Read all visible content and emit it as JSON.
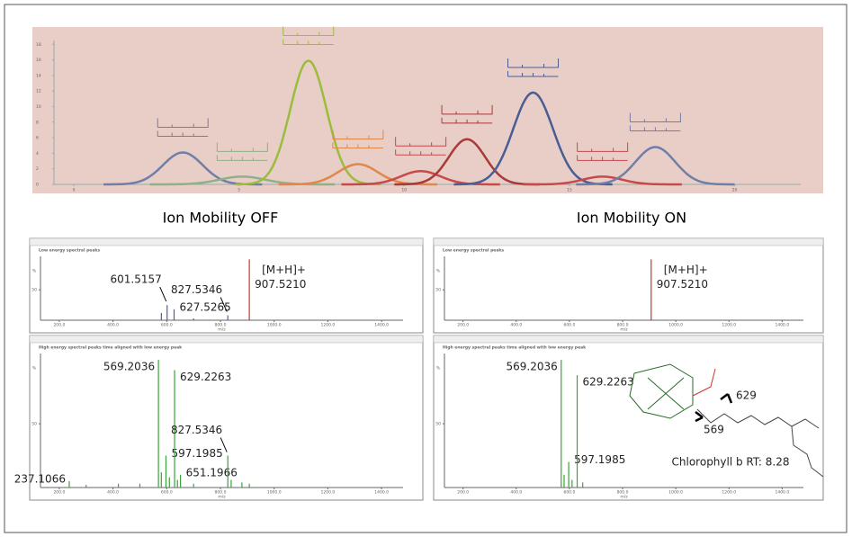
{
  "headings": {
    "left": "Ion Mobility OFF",
    "right": "Ion Mobility ON"
  },
  "structure": {
    "caption": "Chlorophyll b RT: 8.28",
    "fragments": [
      "569",
      "629"
    ]
  },
  "chart_data": [
    {
      "type": "peaks",
      "xlim": [
        -0.6,
        22
      ],
      "ylim": [
        0,
        18.5
      ],
      "xticks": [
        0,
        5,
        10,
        15,
        20
      ],
      "yticks": [
        0,
        2,
        4,
        6,
        8,
        10,
        12,
        14,
        16,
        18
      ],
      "series": [
        {
          "color": "#6f7fa8",
          "center": 3.3,
          "height": 4.1,
          "width": 0.6
        },
        {
          "color": "#8fb08a",
          "center": 5.1,
          "height": 1.0,
          "width": 0.7
        },
        {
          "color": "#9bbd3c",
          "center": 7.1,
          "height": 15.9,
          "width": 0.55
        },
        {
          "color": "#e0874a",
          "center": 8.6,
          "height": 2.6,
          "width": 0.6
        },
        {
          "color": "#c9484a",
          "center": 10.5,
          "height": 1.7,
          "width": 0.6
        },
        {
          "color": "#a83a3a",
          "center": 11.9,
          "height": 5.8,
          "width": 0.55
        },
        {
          "color": "#4a5d94",
          "center": 13.9,
          "height": 11.8,
          "width": 0.6
        },
        {
          "color": "#c9484a",
          "center": 16.0,
          "height": 1.0,
          "width": 0.6
        },
        {
          "color": "#6f7fa8",
          "center": 17.6,
          "height": 4.8,
          "width": 0.6
        }
      ]
    },
    {
      "type": "spectrum",
      "subtitle": "Low energy spectral peaks",
      "color": "#4f5cb0",
      "xlim": [
        130,
        1480
      ],
      "ylim": [
        0,
        105
      ],
      "ylabel": "%",
      "xlabel": "m/z",
      "xticks": [
        {
          "value": 200,
          "label": "200.0"
        },
        {
          "value": 400,
          "label": "400.0"
        },
        {
          "value": 600,
          "label": "600.0"
        },
        {
          "value": 800,
          "label": "800.0"
        },
        {
          "value": 1000,
          "label": "1000.0"
        },
        {
          "value": 1200,
          "label": "1200.0"
        },
        {
          "value": 1400,
          "label": "1400.0"
        }
      ],
      "yticks": [
        50
      ],
      "ion_label": "[M+H]+",
      "x": [
        580,
        601.5,
        627.5,
        700,
        827.5,
        907.5
      ],
      "values": [
        12,
        25,
        18,
        3,
        8,
        100
      ],
      "labels": [
        null,
        "601.5157",
        "627.5265",
        null,
        "827.5346",
        "907.5210"
      ]
    },
    {
      "type": "spectrum",
      "subtitle": "High energy spectral peaks time aligned with low energy peak",
      "color": "#3aa33a",
      "xlim": [
        130,
        1480
      ],
      "ylim": [
        0,
        105
      ],
      "ylabel": "%",
      "xlabel": "m/z",
      "xticks": [
        {
          "value": 200,
          "label": "200.0"
        },
        {
          "value": 400,
          "label": "400.0"
        },
        {
          "value": 600,
          "label": "600.0"
        },
        {
          "value": 800,
          "label": "800.0"
        },
        {
          "value": 1000,
          "label": "1000.0"
        },
        {
          "value": 1200,
          "label": "1200.0"
        },
        {
          "value": 1400,
          "label": "1400.0"
        }
      ],
      "yticks": [
        50
      ],
      "x": [
        237.1,
        300,
        420,
        500,
        569.2,
        580,
        597.2,
        610,
        629.2,
        640,
        651.2,
        700,
        827.5,
        840,
        880,
        907.5
      ],
      "values": [
        5,
        2,
        3,
        3,
        100,
        12,
        25,
        8,
        92,
        6,
        10,
        3,
        25,
        6,
        4,
        3
      ],
      "labels": [
        "237.1066",
        null,
        null,
        null,
        "569.2036",
        null,
        "597.1985",
        null,
        "629.2263",
        null,
        "651.1966",
        null,
        "827.5346",
        null,
        null,
        null
      ]
    },
    {
      "type": "spectrum",
      "subtitle": "Low energy spectral peaks",
      "color": "#6a4fa8",
      "xlim": [
        130,
        1480
      ],
      "ylim": [
        0,
        105
      ],
      "ylabel": "%",
      "xlabel": "m/z",
      "xticks": [
        {
          "value": 200,
          "label": "200.0"
        },
        {
          "value": 400,
          "label": "400.0"
        },
        {
          "value": 600,
          "label": "600.0"
        },
        {
          "value": 800,
          "label": "800.0"
        },
        {
          "value": 1000,
          "label": "1000.0"
        },
        {
          "value": 1200,
          "label": "1200.0"
        },
        {
          "value": 1400,
          "label": "1400.0"
        }
      ],
      "yticks": [
        50
      ],
      "ion_label": "[M+H]+",
      "x": [
        907.5
      ],
      "values": [
        100
      ],
      "labels": [
        "907.5210"
      ]
    },
    {
      "type": "spectrum",
      "subtitle": "High energy spectral peaks time aligned with low energy peak",
      "color": "#3aa33a",
      "xlim": [
        130,
        1480
      ],
      "ylim": [
        0,
        105
      ],
      "ylabel": "%",
      "xlabel": "m/z",
      "xticks": [
        {
          "value": 200,
          "label": "200.0"
        },
        {
          "value": 400,
          "label": "400.0"
        },
        {
          "value": 600,
          "label": "600.0"
        },
        {
          "value": 800,
          "label": "800.0"
        },
        {
          "value": 1000,
          "label": "1000.0"
        },
        {
          "value": 1200,
          "label": "1200.0"
        },
        {
          "value": 1400,
          "label": "1400.0"
        }
      ],
      "yticks": [
        50
      ],
      "x": [
        569.2,
        580,
        597.2,
        610,
        629.2,
        650
      ],
      "values": [
        100,
        10,
        20,
        6,
        88,
        4
      ],
      "labels": [
        "569.2036",
        null,
        "597.1985",
        null,
        "629.2263",
        null
      ]
    }
  ]
}
